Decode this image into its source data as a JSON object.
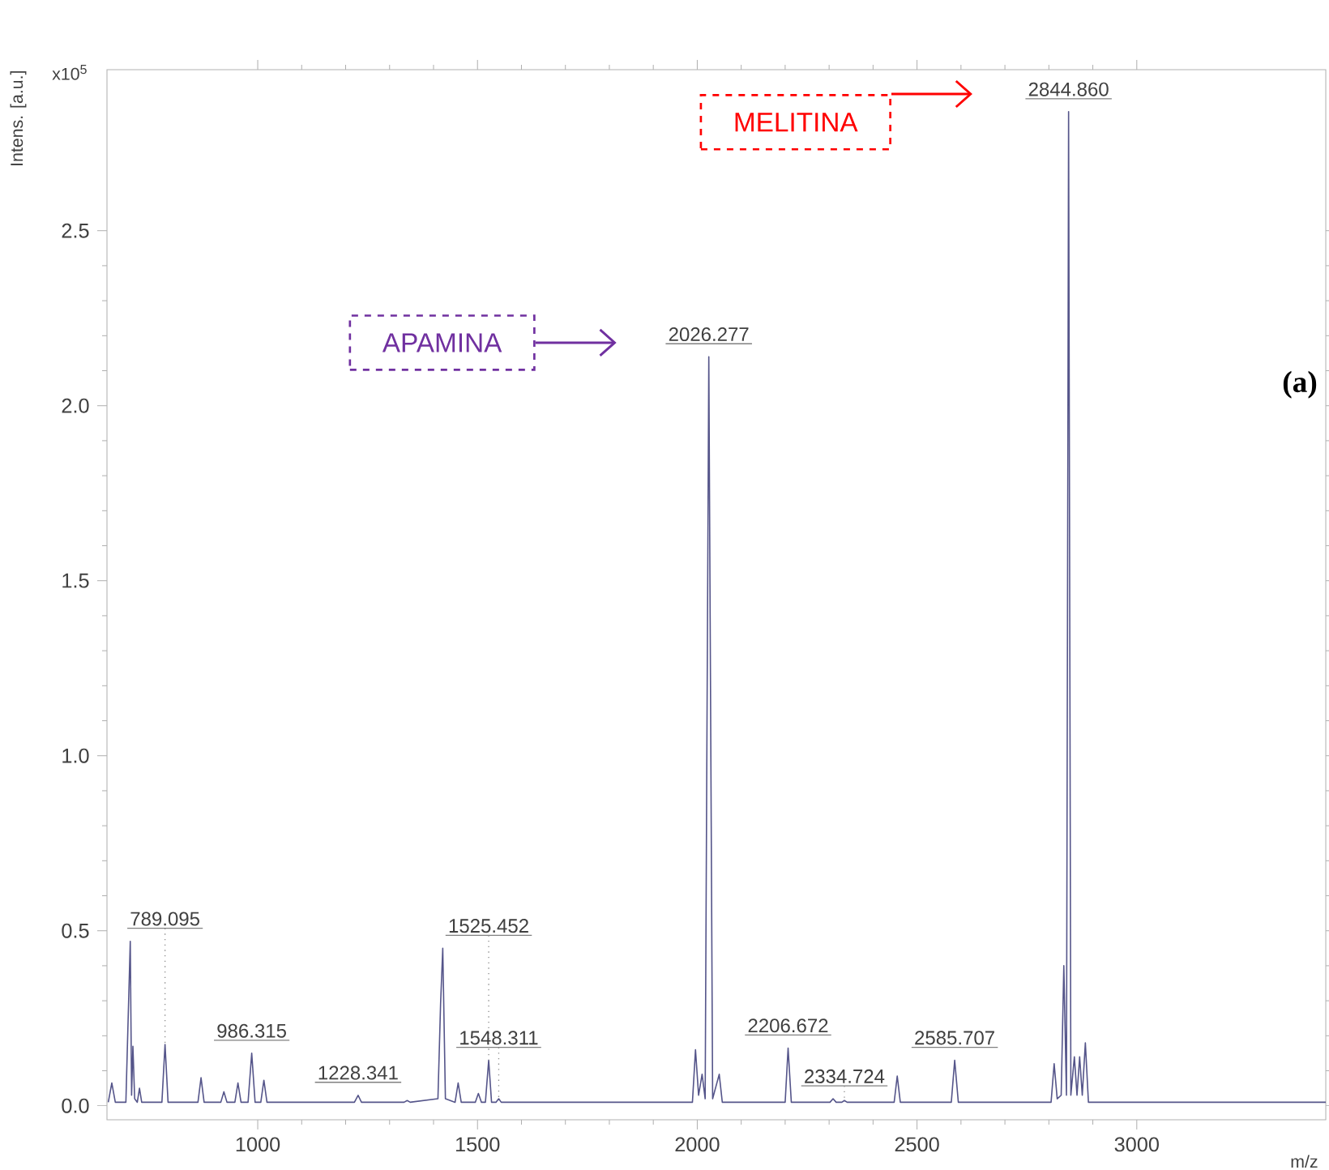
{
  "chart_data": {
    "type": "line",
    "ylabel": "Intens. [a.u.]",
    "xlabel": "m/z",
    "xlim": [
      657,
      3430
    ],
    "ylim": [
      -0.04,
      2.96
    ],
    "xticks": [
      1000,
      1500,
      2000,
      2500,
      3000
    ],
    "yticks": [
      {
        "value": 0,
        "label": "0.0"
      },
      {
        "value": 0.5,
        "label": "0.5"
      },
      {
        "value": 1,
        "label": "1.0"
      },
      {
        "value": 1.5,
        "label": "1.5"
      },
      {
        "value": 2,
        "label": "2.0"
      },
      {
        "value": 2.5,
        "label": "2.5"
      }
    ],
    "marker": "none",
    "grid": false,
    "series": [
      {
        "color": "#55558a",
        "x": [
          660,
          668,
          676,
          700,
          710,
          713,
          716,
          720,
          726,
          731,
          736,
          782,
          789.095,
          796,
          864,
          871,
          878,
          916,
          923,
          930,
          948,
          955,
          962,
          978,
          986.315,
          994,
          1007,
          1014,
          1021,
          1220,
          1228.341,
          1236,
          1333,
          1340,
          1347,
          1410,
          1416,
          1421,
          1427,
          1449,
          1456,
          1463,
          1495,
          1502,
          1509,
          1518,
          1525.452,
          1532,
          1542,
          1548.311,
          1554,
          1989,
          1996,
          2003,
          2011,
          2018,
          2026.277,
          2035,
          2050,
          2057,
          2200,
          2206.672,
          2214,
          2302,
          2309,
          2316,
          2329,
          2334.724,
          2341,
          2448,
          2455,
          2462,
          2578,
          2585.707,
          2594,
          2805,
          2812,
          2819,
          2828,
          2834,
          2840,
          2844.86,
          2850,
          2858,
          2864,
          2870,
          2876,
          2883,
          2890,
          3100,
          3430
        ],
        "values": [
          0.01,
          0.065,
          0.01,
          0.01,
          0.47,
          0.03,
          0.17,
          0.02,
          0.01,
          0.05,
          0.01,
          0.01,
          0.175,
          0.01,
          0.01,
          0.08,
          0.01,
          0.01,
          0.04,
          0.01,
          0.01,
          0.065,
          0.01,
          0.01,
          0.15,
          0.01,
          0.01,
          0.073,
          0.01,
          0.01,
          0.03,
          0.01,
          0.01,
          0.015,
          0.01,
          0.02,
          0.29,
          0.45,
          0.02,
          0.01,
          0.065,
          0.01,
          0.01,
          0.035,
          0.01,
          0.01,
          0.13,
          0.01,
          0.01,
          0.02,
          0.01,
          0.01,
          0.16,
          0.03,
          0.09,
          0.02,
          2.14,
          0.02,
          0.09,
          0.01,
          0.01,
          0.165,
          0.01,
          0.01,
          0.02,
          0.01,
          0.01,
          0.015,
          0.01,
          0.01,
          0.085,
          0.01,
          0.01,
          0.13,
          0.01,
          0.01,
          0.12,
          0.02,
          0.03,
          0.4,
          0.03,
          2.84,
          0.03,
          0.14,
          0.03,
          0.14,
          0.03,
          0.18,
          0.01,
          0.01,
          0.01
        ]
      }
    ],
    "annotations": [
      "x10$^{5}$",
      {
        "text": "789.095",
        "x": 789.095,
        "y": 0.175
      },
      {
        "text": "986.315",
        "x": 986.315,
        "y": 0.15
      },
      {
        "text": "1228.341",
        "x": 1228.341,
        "y": 0.03
      },
      {
        "text": "1525.452",
        "x": 1525.452,
        "y": 0.13
      },
      {
        "text": "1548.311",
        "x": 1548.311,
        "y": 0.02
      },
      {
        "text": "2026.277",
        "x": 2026.277,
        "y": 2.14
      },
      {
        "text": "2206.672",
        "x": 2206.672,
        "y": 0.165
      },
      {
        "text": "2334.724",
        "x": 2334.724,
        "y": 0.015
      },
      {
        "text": "2585.707",
        "x": 2585.707,
        "y": 0.13
      },
      {
        "text": "2844.860",
        "x": 2844.86,
        "y": 2.84
      },
      "APAMINA",
      "MELITINA",
      "(a)"
    ]
  }
}
